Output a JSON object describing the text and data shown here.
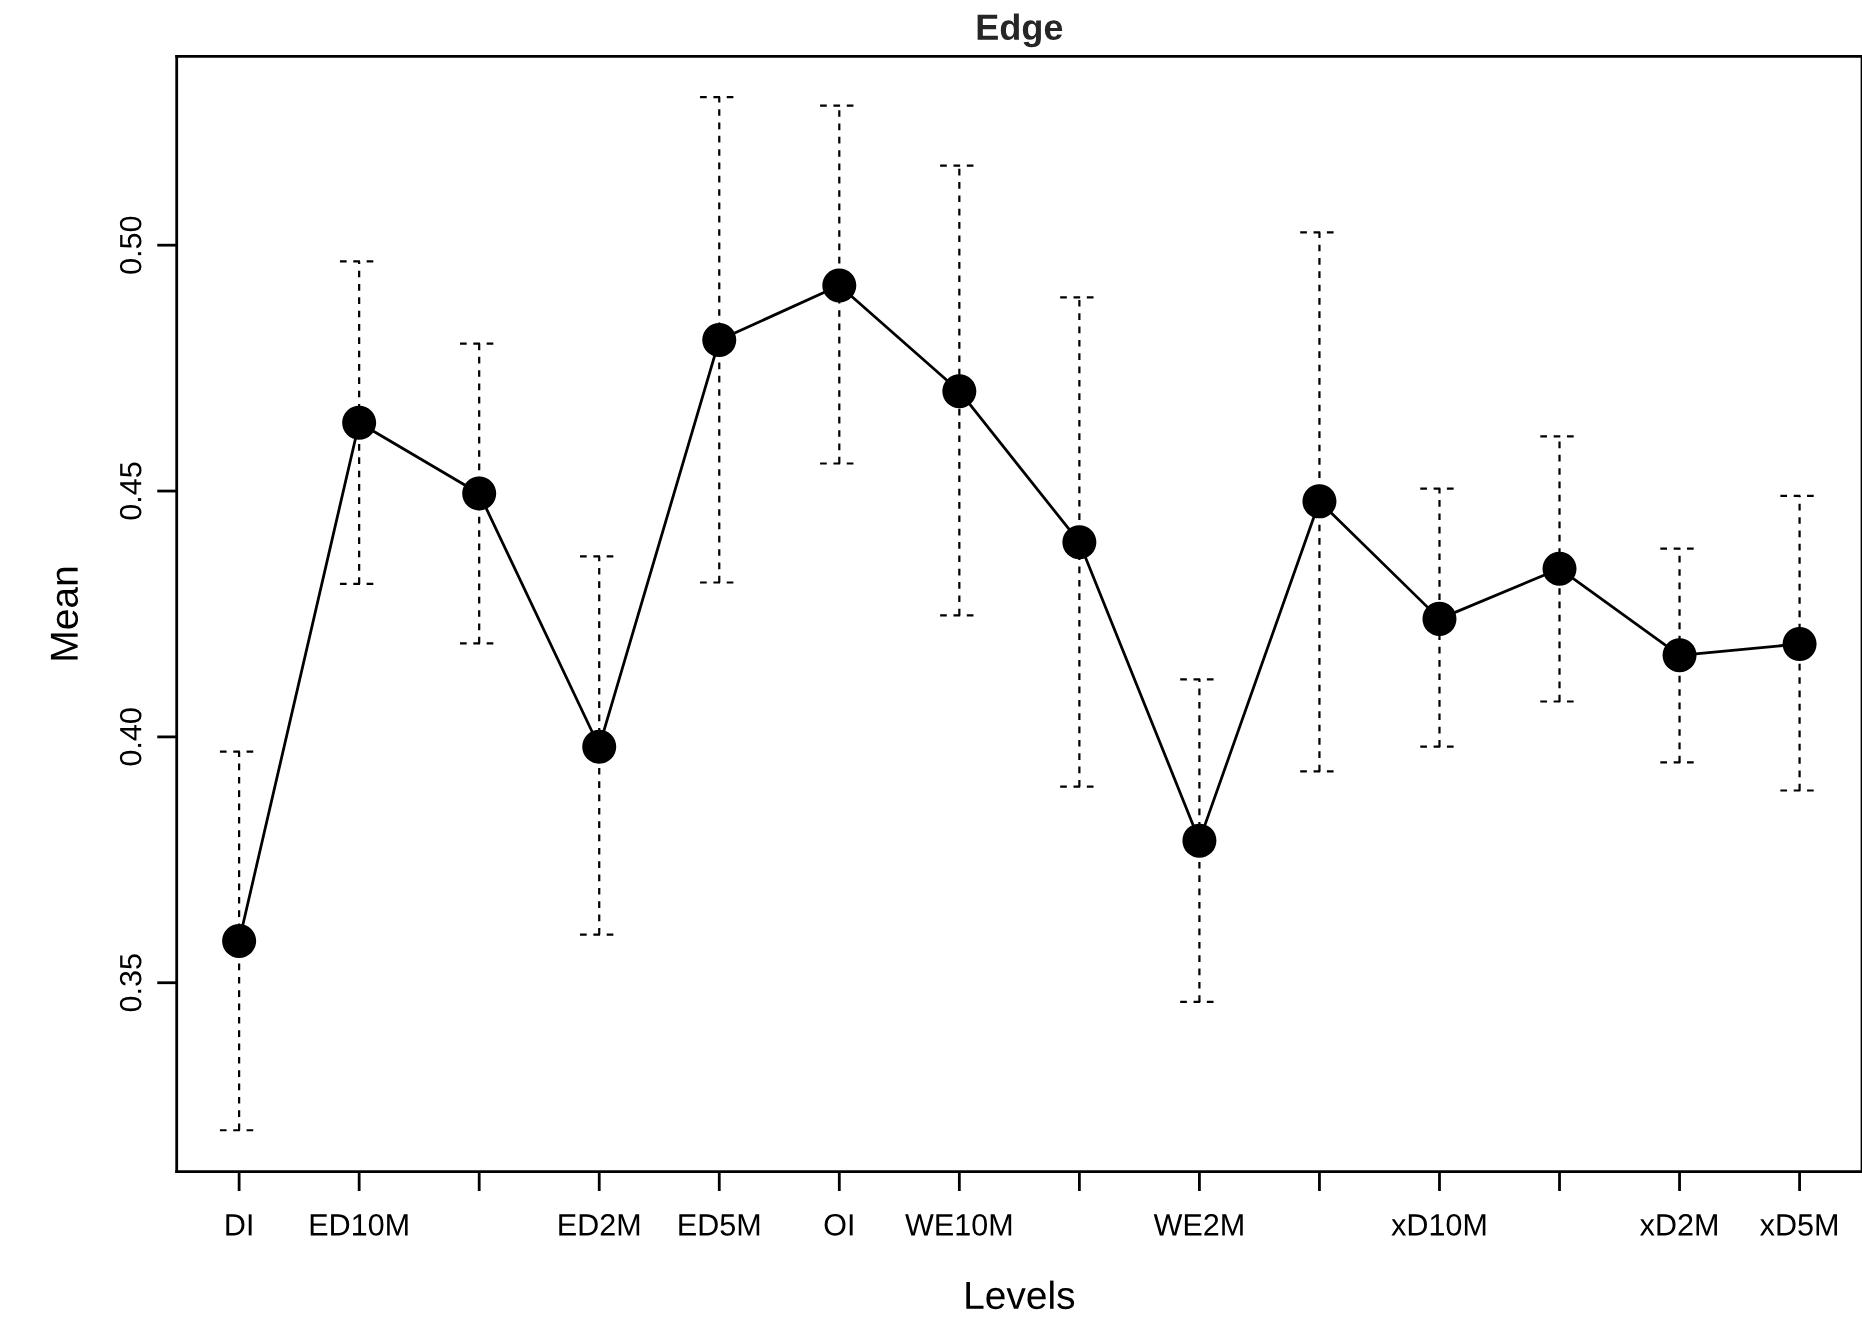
{
  "chart_data": {
    "type": "line",
    "title": "Edge",
    "xlabel": "Levels",
    "ylabel": "Mean",
    "categories": [
      "DI",
      "ED10M",
      null,
      "ED2M",
      "ED5M",
      "OI",
      "WE10M",
      null,
      "WE2M",
      null,
      "xD10M",
      null,
      "xD2M",
      "xD5M"
    ],
    "series": [
      {
        "color": "#000000",
        "values": [
          0.3585,
          0.4639,
          0.4495,
          0.398,
          0.4807,
          0.4918,
          0.4703,
          0.4396,
          0.3789,
          0.4479,
          0.424,
          0.4342,
          0.4166,
          0.4189
        ],
        "errors": [
          [
            0.32,
            0.397
          ],
          [
            0.4311,
            0.4967
          ],
          [
            0.419,
            0.48
          ],
          [
            0.3598,
            0.4367
          ],
          [
            0.4314,
            0.5301
          ],
          [
            0.4556,
            0.5284
          ],
          [
            0.4247,
            0.5162
          ],
          [
            0.3899,
            0.4894
          ],
          [
            0.3461,
            0.4117
          ],
          [
            0.393,
            0.5026
          ],
          [
            0.398,
            0.4505
          ],
          [
            0.4072,
            0.4611
          ],
          [
            0.3948,
            0.4383
          ],
          [
            0.3891,
            0.449
          ]
        ]
      }
    ],
    "ylim": [
      0.3116,
      0.5384
    ],
    "yticks": [
      0.35,
      {
        "value": 0.4,
        "label": "0.40"
      },
      0.45,
      {
        "value": 0.5,
        "label": "0.50"
      }
    ],
    "marker": "circle",
    "line_style": "solid",
    "grid": false,
    "legend": false
  }
}
